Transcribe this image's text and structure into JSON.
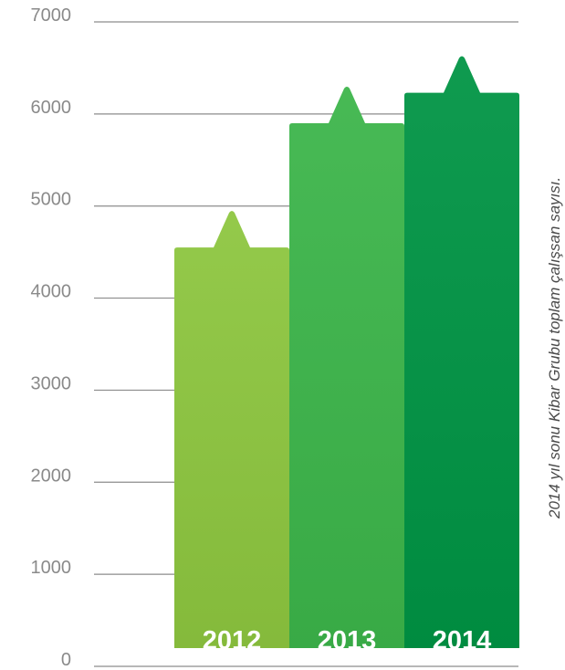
{
  "chart_data": {
    "type": "bar",
    "categories": [
      "2012",
      "2013",
      "2014"
    ],
    "values": [
      4550,
      5900,
      6230
    ],
    "title": "",
    "xlabel": "",
    "ylabel": "",
    "ylim": [
      0,
      7000
    ],
    "yticks": [
      "0",
      "1000",
      "2000",
      "3000",
      "4000",
      "5000",
      "6000",
      "7000"
    ],
    "grid": true,
    "legend": "none",
    "colors": [
      "#8dc63f",
      "#3cb54a",
      "#009444"
    ],
    "note": "2014 yıl sonu Kibar Grubu toplam çalışsan sayısı."
  }
}
